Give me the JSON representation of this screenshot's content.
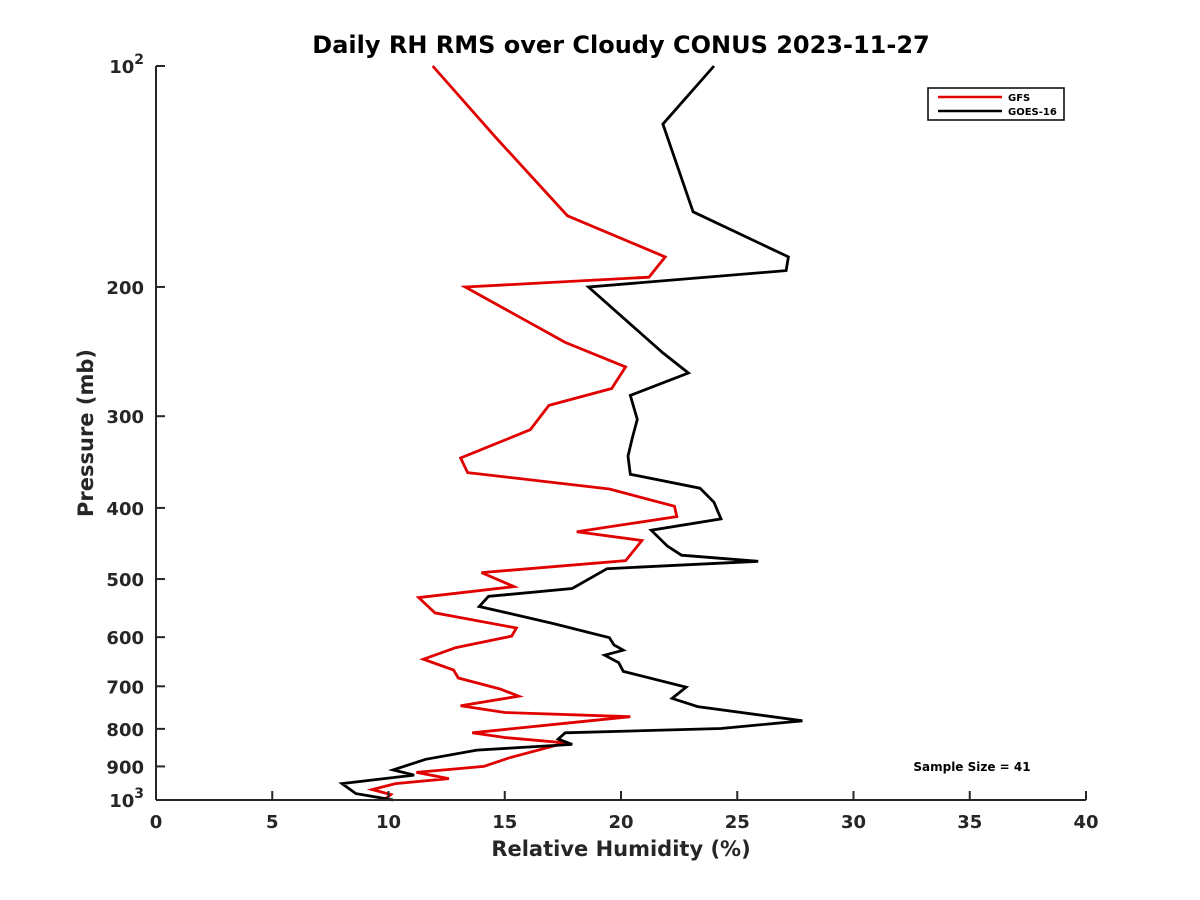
{
  "chart_data": {
    "type": "line",
    "title": "Daily RH RMS over Cloudy CONUS 2023-11-27",
    "xlabel": "Relative Humidity (%)",
    "ylabel": "Pressure (mb)",
    "xlim": [
      0,
      40
    ],
    "ylim": [
      100,
      1000
    ],
    "yscale": "log",
    "y_reversed": true,
    "x_ticks": [
      "0",
      "5",
      "10",
      "15",
      "20",
      "25",
      "30",
      "35",
      "40"
    ],
    "y_ticks": [
      {
        "value": 100,
        "base": "10",
        "exp": "2"
      },
      {
        "value": 200,
        "label": "200"
      },
      {
        "value": 300,
        "label": "300"
      },
      {
        "value": 400,
        "label": "400"
      },
      {
        "value": 500,
        "label": "500"
      },
      {
        "value": 600,
        "label": "600"
      },
      {
        "value": 700,
        "label": "700"
      },
      {
        "value": 800,
        "label": "800"
      },
      {
        "value": 900,
        "label": "900"
      },
      {
        "value": 1000,
        "base": "10",
        "exp": "3"
      }
    ],
    "legend_position": "top-right",
    "annotation": "Sample Size = 41",
    "series": [
      {
        "name": "GFS",
        "color": "#e00000",
        "points": [
          [
            11.9,
            100
          ],
          [
            14.6,
            125
          ],
          [
            17.7,
            160
          ],
          [
            21.9,
            182
          ],
          [
            21.2,
            194
          ],
          [
            13.3,
            200
          ],
          [
            17.6,
            238
          ],
          [
            20.2,
            257
          ],
          [
            19.6,
            275
          ],
          [
            16.9,
            290
          ],
          [
            16.1,
            313
          ],
          [
            13.1,
            342
          ],
          [
            13.4,
            358
          ],
          [
            19.5,
            377
          ],
          [
            22.3,
            398
          ],
          [
            22.4,
            411
          ],
          [
            18.1,
            431
          ],
          [
            20.9,
            443
          ],
          [
            20.2,
            472
          ],
          [
            14.0,
            490
          ],
          [
            15.4,
            512
          ],
          [
            11.3,
            530
          ],
          [
            12.0,
            556
          ],
          [
            15.5,
            583
          ],
          [
            15.3,
            598
          ],
          [
            12.9,
            620
          ],
          [
            11.5,
            643
          ],
          [
            12.8,
            665
          ],
          [
            13.0,
            682
          ],
          [
            14.8,
            706
          ],
          [
            15.6,
            722
          ],
          [
            13.1,
            744
          ],
          [
            15.0,
            760
          ],
          [
            20.4,
            770
          ],
          [
            17.8,
            785
          ],
          [
            13.6,
            810
          ],
          [
            15.0,
            822
          ],
          [
            17.6,
            836
          ],
          [
            15.2,
            876
          ],
          [
            14.1,
            900
          ],
          [
            11.2,
            917
          ],
          [
            12.6,
            935
          ],
          [
            10.3,
            950
          ],
          [
            9.3,
            968
          ],
          [
            10.1,
            983
          ],
          [
            9.8,
            1000
          ]
        ]
      },
      {
        "name": "GOES-16",
        "color": "#000000",
        "points": [
          [
            24.0,
            100
          ],
          [
            21.8,
            120
          ],
          [
            23.1,
            158
          ],
          [
            27.2,
            182
          ],
          [
            27.1,
            190
          ],
          [
            18.6,
            200
          ],
          [
            21.8,
            246
          ],
          [
            22.9,
            262
          ],
          [
            20.4,
            281
          ],
          [
            20.7,
            303
          ],
          [
            20.5,
            320
          ],
          [
            20.3,
            340
          ],
          [
            20.4,
            360
          ],
          [
            23.4,
            376
          ],
          [
            24.0,
            393
          ],
          [
            24.3,
            414
          ],
          [
            21.3,
            429
          ],
          [
            22.0,
            451
          ],
          [
            22.6,
            464
          ],
          [
            25.9,
            473
          ],
          [
            19.4,
            484
          ],
          [
            17.9,
            515
          ],
          [
            14.3,
            528
          ],
          [
            13.9,
            545
          ],
          [
            17.1,
            575
          ],
          [
            19.5,
            601
          ],
          [
            19.7,
            615
          ],
          [
            20.1,
            625
          ],
          [
            19.3,
            635
          ],
          [
            19.9,
            650
          ],
          [
            20.1,
            668
          ],
          [
            22.8,
            702
          ],
          [
            22.2,
            727
          ],
          [
            23.3,
            746
          ],
          [
            27.8,
            780
          ],
          [
            24.3,
            799
          ],
          [
            17.6,
            810
          ],
          [
            17.3,
            826
          ],
          [
            17.9,
            840
          ],
          [
            13.8,
            855
          ],
          [
            11.6,
            880
          ],
          [
            10.2,
            910
          ],
          [
            11.1,
            925
          ],
          [
            8.0,
            950
          ],
          [
            8.6,
            980
          ],
          [
            10.2,
            1000
          ]
        ]
      }
    ]
  }
}
